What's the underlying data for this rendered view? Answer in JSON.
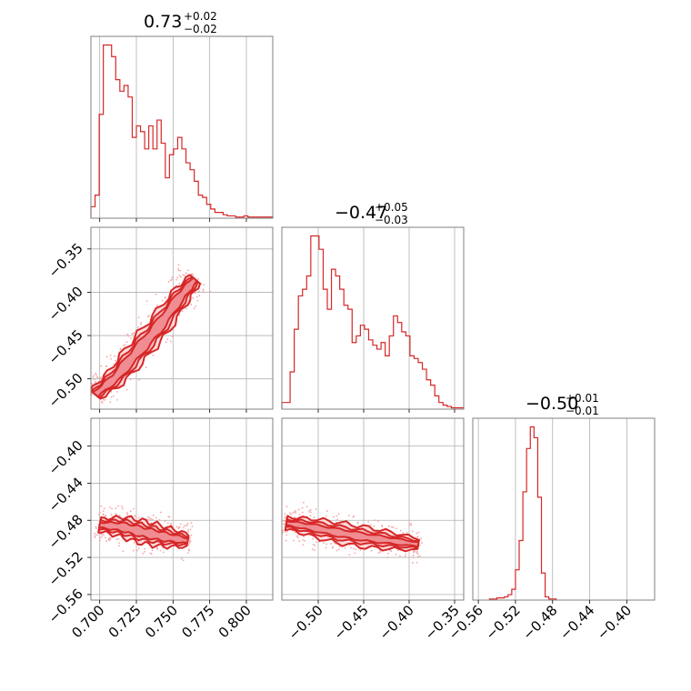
{
  "chart_data": {
    "type": "corner",
    "color": "#d62728",
    "parameters": [
      {
        "title": {
          "value": "0.73",
          "plus": "+0.02",
          "minus": "−0.02"
        },
        "range": [
          0.694,
          0.818
        ],
        "ticks": [
          0.7,
          0.725,
          0.75,
          0.775,
          0.8
        ],
        "ticklabels": [
          "0.700",
          "0.725",
          "0.750",
          "0.775",
          "0.800"
        ],
        "hist": [
          10,
          20,
          90,
          150,
          150,
          140,
          120,
          110,
          115,
          105,
          70,
          80,
          75,
          60,
          80,
          60,
          85,
          65,
          35,
          55,
          60,
          70,
          60,
          48,
          42,
          32,
          20,
          18,
          12,
          8,
          5,
          5,
          3,
          2,
          2,
          1,
          1,
          2,
          1,
          1,
          1,
          1,
          1,
          1
        ]
      },
      {
        "title": {
          "value": "−0.47",
          "plus": "+0.05",
          "minus": "−0.03"
        },
        "range": [
          -0.54,
          -0.34
        ],
        "ticks": [
          -0.5,
          -0.45,
          -0.4,
          -0.35
        ],
        "ticklabels": [
          "−0.50",
          "−0.45",
          "−0.40",
          "−0.35"
        ],
        "ylim": [
          -0.535,
          -0.325
        ],
        "yticks": [
          -0.5,
          -0.45,
          -0.4,
          -0.35
        ],
        "yticklabels": [
          "−0.50",
          "−0.45",
          "−0.40",
          "−0.35"
        ],
        "hist": [
          5,
          5,
          28,
          60,
          85,
          90,
          100,
          130,
          130,
          120,
          90,
          75,
          105,
          100,
          90,
          78,
          75,
          50,
          55,
          63,
          60,
          52,
          48,
          45,
          50,
          40,
          55,
          70,
          65,
          58,
          55,
          40,
          38,
          35,
          30,
          22,
          18,
          10,
          5,
          3,
          2,
          1,
          1,
          1
        ]
      },
      {
        "title": {
          "value": "−0.50",
          "plus": "+0.01",
          "minus": "−0.01"
        },
        "range": [
          -0.566,
          -0.37
        ],
        "ticks": [
          -0.56,
          -0.52,
          -0.48,
          -0.44,
          -0.4
        ],
        "ticklabels": [
          "−0.56",
          "−0.52",
          "−0.48",
          "−0.44",
          "−0.40"
        ],
        "ylim": [
          -0.566,
          -0.37
        ],
        "yticks": [
          -0.56,
          -0.52,
          -0.48,
          -0.44,
          -0.4
        ],
        "yticklabels": [
          "−0.56",
          "−0.52",
          "−0.48",
          "−0.44",
          "−0.40"
        ],
        "hist_bins": [
          -0.548,
          -0.544,
          -0.54,
          -0.536,
          -0.532,
          -0.528,
          -0.524,
          -0.52,
          -0.516,
          -0.512,
          -0.508,
          -0.504,
          -0.5,
          -0.496,
          -0.492,
          -0.488,
          -0.484,
          -0.48
        ],
        "hist": [
          1,
          1,
          2,
          2,
          3,
          5,
          10,
          28,
          55,
          100,
          140,
          160,
          150,
          95,
          25,
          3,
          1,
          1
        ]
      }
    ],
    "pairs": [
      {
        "x_param": 0,
        "y_param": 1,
        "center_line": [
          [
            0.697,
            -0.518
          ],
          [
            0.71,
            -0.5
          ],
          [
            0.725,
            -0.47
          ],
          [
            0.74,
            -0.44
          ],
          [
            0.755,
            -0.405
          ],
          [
            0.765,
            -0.385
          ]
        ],
        "widths": [
          0.006,
          0.009,
          0.013
        ]
      },
      {
        "x_param": 0,
        "y_param": 2,
        "center_line": [
          [
            0.7,
            -0.485
          ],
          [
            0.715,
            -0.487
          ],
          [
            0.73,
            -0.493
          ],
          [
            0.745,
            -0.498
          ],
          [
            0.76,
            -0.502
          ]
        ],
        "widths": [
          0.005,
          0.008,
          0.012
        ]
      },
      {
        "x_param": 1,
        "y_param": 2,
        "center_line": [
          [
            -0.535,
            -0.483
          ],
          [
            -0.51,
            -0.487
          ],
          [
            -0.48,
            -0.493
          ],
          [
            -0.45,
            -0.498
          ],
          [
            -0.42,
            -0.502
          ],
          [
            -0.39,
            -0.506
          ]
        ],
        "widths": [
          0.004,
          0.007,
          0.011
        ]
      }
    ]
  }
}
